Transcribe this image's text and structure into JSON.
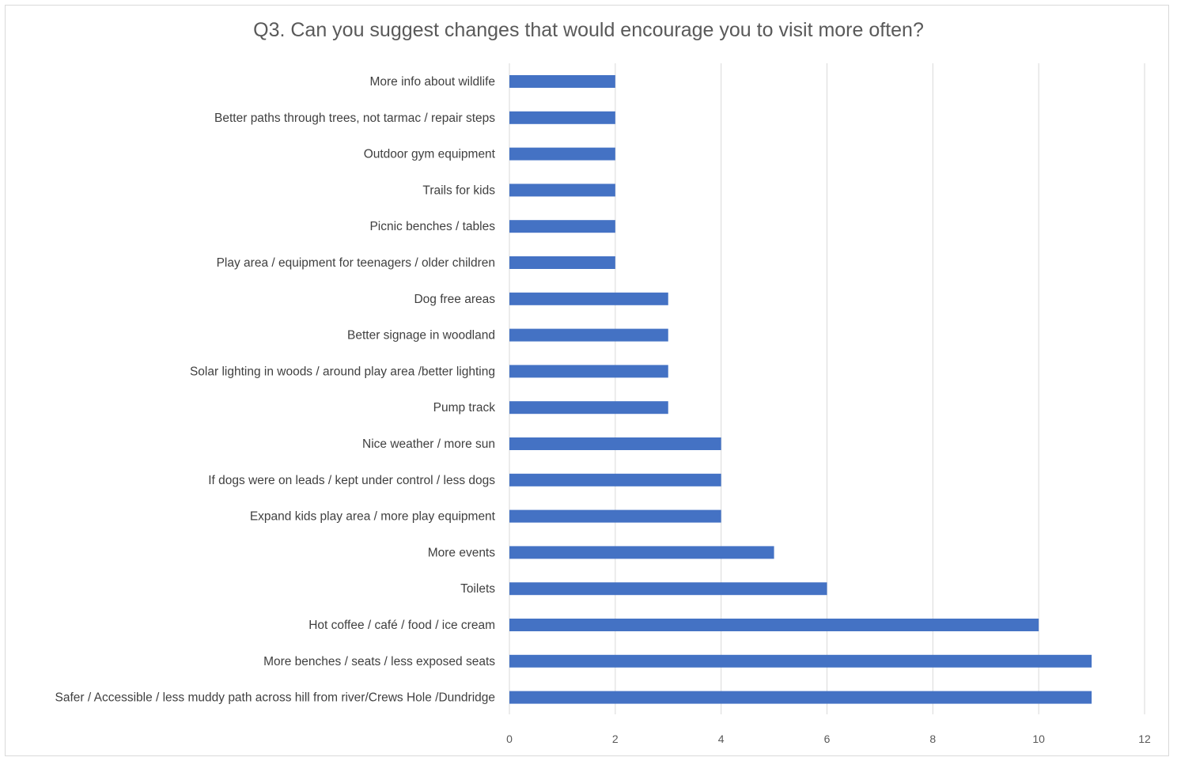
{
  "chart_data": {
    "type": "bar",
    "orientation": "horizontal",
    "title": "Q3. Can you suggest changes that would encourage you to visit more often?",
    "xlabel": "",
    "ylabel": "",
    "xlim": [
      0,
      12
    ],
    "x_ticks": [
      0,
      2,
      4,
      6,
      8,
      10,
      12
    ],
    "grid": true,
    "legend": "none",
    "bar_color": "#4472C4",
    "gridline_color": "#d9d9d9",
    "categories": [
      "More info about wildlife",
      "Better paths through trees, not tarmac / repair steps",
      "Outdoor gym equipment",
      "Trails for kids",
      "Picnic benches / tables",
      "Play area / equipment for teenagers / older children",
      "Dog free areas",
      "Better signage in woodland",
      "Solar lighting in woods / around play area /better lighting",
      "Pump track",
      "Nice weather / more sun",
      "If dogs were on leads / kept under control / less dogs",
      "Expand kids play area / more play equipment",
      "More events",
      "Toilets",
      "Hot coffee / café / food / ice cream",
      "More benches / seats / less exposed seats",
      "Safer / Accessible / less muddy path across hill from river/Crews Hole /Dundridge"
    ],
    "values": [
      2,
      2,
      2,
      2,
      2,
      2,
      3,
      3,
      3,
      3,
      4,
      4,
      4,
      5,
      6,
      10,
      11,
      11
    ]
  }
}
